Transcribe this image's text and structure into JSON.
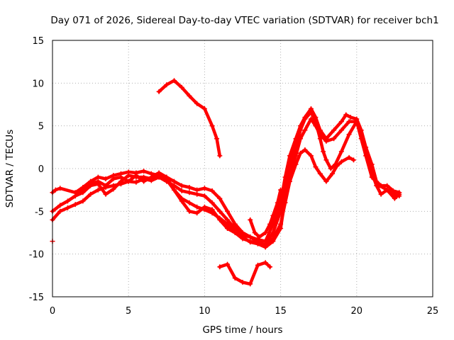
{
  "chart_data": {
    "type": "scatter",
    "title": "Day 071 of 2026, Sidereal Day-to-day VTEC variation (SDTVAR) for receiver bch1",
    "xlabel": "GPS time / hours",
    "ylabel": "SDTVAR / TECUs",
    "xlim": [
      0,
      25
    ],
    "ylim": [
      -15,
      15
    ],
    "xticks": [
      0,
      5,
      10,
      15,
      20,
      25
    ],
    "yticks": [
      -15,
      -10,
      -5,
      0,
      5,
      10,
      15
    ],
    "grid": true,
    "legend": "none",
    "color": "#ff0000",
    "series": [
      {
        "name": "track-1",
        "points": [
          [
            0.0,
            -5.0
          ],
          [
            0.5,
            -4.3
          ],
          [
            1.0,
            -3.8
          ],
          [
            1.5,
            -3.2
          ],
          [
            2.0,
            -2.5
          ],
          [
            2.5,
            -1.8
          ],
          [
            3.0,
            -1.5
          ],
          [
            3.5,
            -2.0
          ],
          [
            4.0,
            -1.2
          ],
          [
            4.5,
            -1.0
          ],
          [
            5.0,
            -1.5
          ],
          [
            5.5,
            -0.8
          ],
          [
            6.0,
            -1.5
          ],
          [
            6.5,
            -1.0
          ],
          [
            7.0,
            -0.5
          ],
          [
            7.5,
            -1.0
          ],
          [
            8.0,
            -2.5
          ],
          [
            8.5,
            -3.5
          ],
          [
            9.0,
            -4.0
          ],
          [
            9.5,
            -4.5
          ],
          [
            10.0,
            -4.8
          ],
          [
            10.5,
            -5.2
          ],
          [
            11.0,
            -5.8
          ],
          [
            11.5,
            -6.5
          ],
          [
            12.0,
            -7.5
          ],
          [
            12.5,
            -8.2
          ],
          [
            13.0,
            -8.5
          ],
          [
            13.5,
            -8.8
          ],
          [
            14.0,
            -9.0
          ],
          [
            14.5,
            -8.2
          ],
          [
            15.0,
            -6.5
          ],
          [
            15.3,
            -4.0
          ],
          [
            15.6,
            -1.5
          ],
          [
            16.0,
            0.5
          ],
          [
            16.3,
            1.8
          ],
          [
            16.6,
            2.2
          ],
          [
            17.0,
            1.5
          ],
          [
            17.3,
            0.2
          ],
          [
            17.6,
            -0.6
          ],
          [
            18.0,
            -1.5
          ],
          [
            18.4,
            -0.6
          ],
          [
            18.7,
            0.3
          ],
          [
            19.0,
            0.8
          ],
          [
            19.5,
            1.3
          ],
          [
            19.8,
            1.0
          ]
        ]
      },
      {
        "name": "track-2",
        "points": [
          [
            0.0,
            -6.0
          ],
          [
            0.5,
            -5.0
          ],
          [
            1.0,
            -4.6
          ],
          [
            1.5,
            -4.2
          ],
          [
            2.0,
            -3.8
          ],
          [
            2.5,
            -3.0
          ],
          [
            3.0,
            -2.5
          ],
          [
            3.5,
            -2.2
          ],
          [
            4.0,
            -2.0
          ],
          [
            4.5,
            -1.8
          ],
          [
            5.0,
            -1.5
          ],
          [
            5.5,
            -1.6
          ],
          [
            6.0,
            -1.2
          ],
          [
            6.5,
            -1.4
          ],
          [
            7.0,
            -1.0
          ],
          [
            7.5,
            -1.5
          ],
          [
            8.0,
            -2.0
          ],
          [
            8.5,
            -2.6
          ],
          [
            9.0,
            -2.8
          ],
          [
            9.5,
            -3.0
          ],
          [
            10.0,
            -3.2
          ],
          [
            10.5,
            -4.0
          ],
          [
            11.0,
            -5.0
          ],
          [
            11.5,
            -6.0
          ],
          [
            12.0,
            -7.0
          ],
          [
            12.5,
            -7.8
          ],
          [
            13.0,
            -8.0
          ],
          [
            13.5,
            -8.6
          ],
          [
            14.0,
            -8.9
          ],
          [
            14.5,
            -7.5
          ],
          [
            15.0,
            -5.0
          ],
          [
            15.3,
            -2.0
          ],
          [
            15.6,
            0.5
          ],
          [
            16.0,
            2.5
          ],
          [
            16.3,
            4.5
          ],
          [
            16.6,
            5.8
          ],
          [
            17.0,
            6.6
          ],
          [
            17.3,
            5.5
          ],
          [
            17.6,
            3.5
          ],
          [
            17.8,
            2.0
          ],
          [
            18.0,
            1.0
          ],
          [
            18.3,
            0.0
          ],
          [
            18.6,
            0.5
          ],
          [
            19.0,
            2.0
          ],
          [
            19.5,
            4.0
          ],
          [
            20.0,
            5.5
          ],
          [
            20.3,
            3.5
          ],
          [
            20.6,
            1.5
          ],
          [
            21.0,
            -1.0
          ],
          [
            21.5,
            -2.0
          ],
          [
            22.0,
            -2.5
          ],
          [
            22.5,
            -3.0
          ],
          [
            22.8,
            -3.2
          ]
        ]
      },
      {
        "name": "track-3",
        "points": [
          [
            0.0,
            -2.8
          ],
          [
            0.2,
            -2.5
          ],
          [
            0.5,
            -2.3
          ],
          [
            1.5,
            -2.8
          ],
          [
            2.0,
            -2.2
          ],
          [
            2.5,
            -1.5
          ],
          [
            3.0,
            -1.0
          ],
          [
            3.5,
            -1.2
          ],
          [
            4.0,
            -0.8
          ],
          [
            4.5,
            -0.6
          ],
          [
            5.0,
            -0.4
          ],
          [
            5.5,
            -0.5
          ],
          [
            6.0,
            -0.3
          ],
          [
            6.5,
            -0.6
          ],
          [
            7.0,
            -0.8
          ],
          [
            7.5,
            -1.0
          ],
          [
            8.0,
            -1.5
          ],
          [
            8.5,
            -2.0
          ],
          [
            9.0,
            -2.2
          ],
          [
            9.5,
            -2.5
          ],
          [
            10.0,
            -2.3
          ],
          [
            10.5,
            -2.6
          ],
          [
            11.0,
            -3.5
          ],
          [
            11.5,
            -5.0
          ],
          [
            12.0,
            -6.5
          ],
          [
            12.5,
            -7.5
          ],
          [
            13.0,
            -8.0
          ],
          [
            13.5,
            -8.3
          ],
          [
            14.0,
            -8.5
          ],
          [
            14.5,
            -6.5
          ],
          [
            15.0,
            -4.0
          ],
          [
            15.3,
            -1.0
          ],
          [
            15.6,
            1.5
          ],
          [
            16.0,
            3.5
          ],
          [
            16.3,
            5.0
          ],
          [
            16.6,
            6.0
          ],
          [
            17.0,
            7.0
          ],
          [
            17.3,
            6.0
          ],
          [
            17.6,
            4.5
          ],
          [
            18.0,
            3.5
          ],
          [
            18.5,
            4.5
          ],
          [
            19.0,
            5.5
          ],
          [
            19.3,
            6.3
          ],
          [
            19.6,
            6.0
          ],
          [
            20.0,
            5.8
          ],
          [
            20.3,
            4.5
          ],
          [
            20.6,
            2.5
          ],
          [
            21.0,
            0.5
          ],
          [
            21.3,
            -1.5
          ],
          [
            21.6,
            -2.0
          ],
          [
            22.0,
            -2.0
          ],
          [
            22.4,
            -2.6
          ],
          [
            22.8,
            -2.8
          ]
        ]
      },
      {
        "name": "track-4",
        "points": [
          [
            1.5,
            -3.2
          ],
          [
            2.0,
            -2.8
          ],
          [
            2.5,
            -2.0
          ],
          [
            3.0,
            -1.8
          ],
          [
            3.5,
            -3.0
          ],
          [
            4.0,
            -2.4
          ],
          [
            4.5,
            -1.5
          ],
          [
            5.0,
            -0.8
          ],
          [
            5.5,
            -1.0
          ],
          [
            6.0,
            -1.0
          ],
          [
            6.5,
            -1.2
          ],
          [
            7.0,
            -1.0
          ],
          [
            7.5,
            -1.3
          ],
          [
            8.0,
            -2.5
          ],
          [
            8.5,
            -3.8
          ],
          [
            9.0,
            -5.0
          ],
          [
            9.5,
            -5.2
          ],
          [
            10.0,
            -4.5
          ],
          [
            10.5,
            -4.8
          ],
          [
            11.0,
            -6.0
          ],
          [
            11.5,
            -7.0
          ],
          [
            12.0,
            -7.5
          ],
          [
            12.5,
            -8.0
          ],
          [
            13.0,
            -8.6
          ],
          [
            13.5,
            -8.8
          ],
          [
            14.0,
            -9.2
          ],
          [
            14.5,
            -8.5
          ],
          [
            15.0,
            -7.0
          ],
          [
            15.3,
            -3.5
          ],
          [
            15.6,
            -0.5
          ],
          [
            16.0,
            1.5
          ],
          [
            16.3,
            3.5
          ],
          [
            16.6,
            4.5
          ],
          [
            17.0,
            5.8
          ],
          [
            17.3,
            5.0
          ],
          [
            17.6,
            4.0
          ],
          [
            18.0,
            3.2
          ],
          [
            18.5,
            3.5
          ],
          [
            19.0,
            4.5
          ],
          [
            19.5,
            5.5
          ],
          [
            20.0,
            5.5
          ],
          [
            20.3,
            4.0
          ],
          [
            20.6,
            2.0
          ],
          [
            21.0,
            -0.5
          ],
          [
            21.3,
            -2.0
          ],
          [
            21.6,
            -3.0
          ],
          [
            22.0,
            -2.5
          ],
          [
            22.5,
            -3.5
          ],
          [
            22.8,
            -3.0
          ]
        ]
      },
      {
        "name": "track-5",
        "points": [
          [
            13.0,
            -6.0
          ],
          [
            13.3,
            -7.5
          ],
          [
            13.6,
            -8.0
          ],
          [
            14.0,
            -7.5
          ],
          [
            14.3,
            -6.5
          ],
          [
            14.5,
            -5.5
          ],
          [
            14.8,
            -4.0
          ],
          [
            15.0,
            -2.5
          ]
        ]
      },
      {
        "name": "track-6",
        "points": [
          [
            7.0,
            9.0
          ],
          [
            7.5,
            9.8
          ],
          [
            8.0,
            10.3
          ],
          [
            8.5,
            9.5
          ],
          [
            9.0,
            8.5
          ],
          [
            9.5,
            7.6
          ],
          [
            10.0,
            7.0
          ],
          [
            10.5,
            5.0
          ],
          [
            10.8,
            3.5
          ],
          [
            11.0,
            1.5
          ]
        ]
      },
      {
        "name": "track-7",
        "points": [
          [
            11.0,
            -11.5
          ],
          [
            11.5,
            -11.2
          ],
          [
            12.0,
            -12.8
          ],
          [
            12.5,
            -13.3
          ],
          [
            13.0,
            -13.5
          ],
          [
            13.5,
            -11.3
          ],
          [
            14.0,
            -11.0
          ],
          [
            14.3,
            -11.5
          ]
        ]
      },
      {
        "name": "track-8",
        "points": [
          [
            0.0,
            -8.5
          ]
        ]
      }
    ]
  }
}
